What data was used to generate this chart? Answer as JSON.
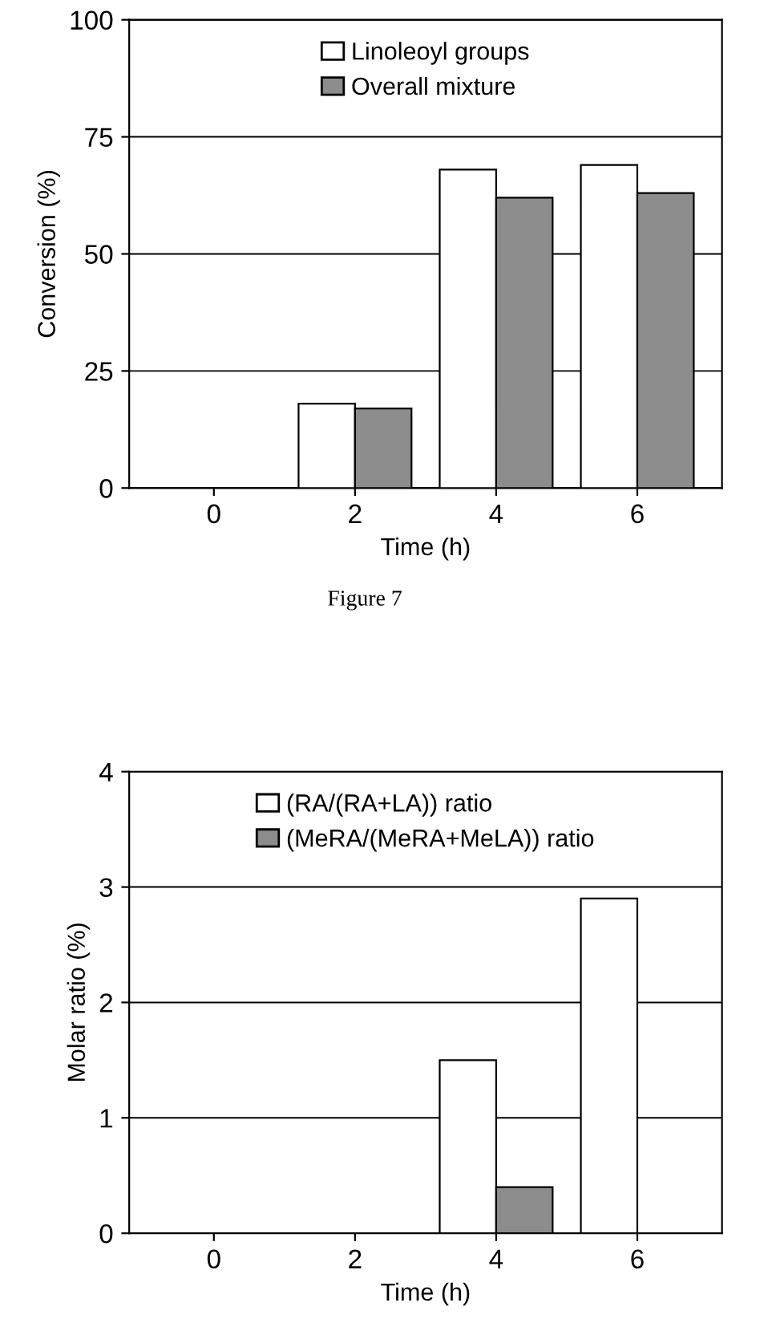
{
  "chart_data": [
    {
      "type": "bar",
      "xlabel": "Time (h)",
      "ylabel": "Conversion (%)",
      "categories": [
        "0",
        "2",
        "4",
        "6"
      ],
      "series": [
        {
          "name": "Linoleoyl groups",
          "color": "#ffffff",
          "values": [
            0,
            18,
            68,
            69
          ]
        },
        {
          "name": "Overall mixture",
          "color": "#8c8c8c",
          "values": [
            0,
            17,
            62,
            63
          ]
        }
      ],
      "ylim": [
        0,
        100
      ],
      "yticks": [
        0,
        25,
        50,
        75,
        100
      ],
      "grid": "y",
      "legend": "top",
      "annotations": [
        "Figure 7"
      ]
    },
    {
      "type": "bar",
      "xlabel": "Time (h)",
      "ylabel": "Molar ratio (%)",
      "categories": [
        "0",
        "2",
        "4",
        "6"
      ],
      "series": [
        {
          "name": "(RA/(RA+LA)) ratio",
          "color": "#ffffff",
          "values": [
            0,
            0,
            1.5,
            2.9
          ]
        },
        {
          "name": "(MeRA/(MeRA+MeLA)) ratio",
          "color": "#8c8c8c",
          "values": [
            0,
            0,
            0.4,
            0
          ]
        }
      ],
      "ylim": [
        0,
        4
      ],
      "yticks": [
        0,
        1,
        2,
        3,
        4
      ],
      "grid": "y",
      "legend": "top"
    }
  ]
}
